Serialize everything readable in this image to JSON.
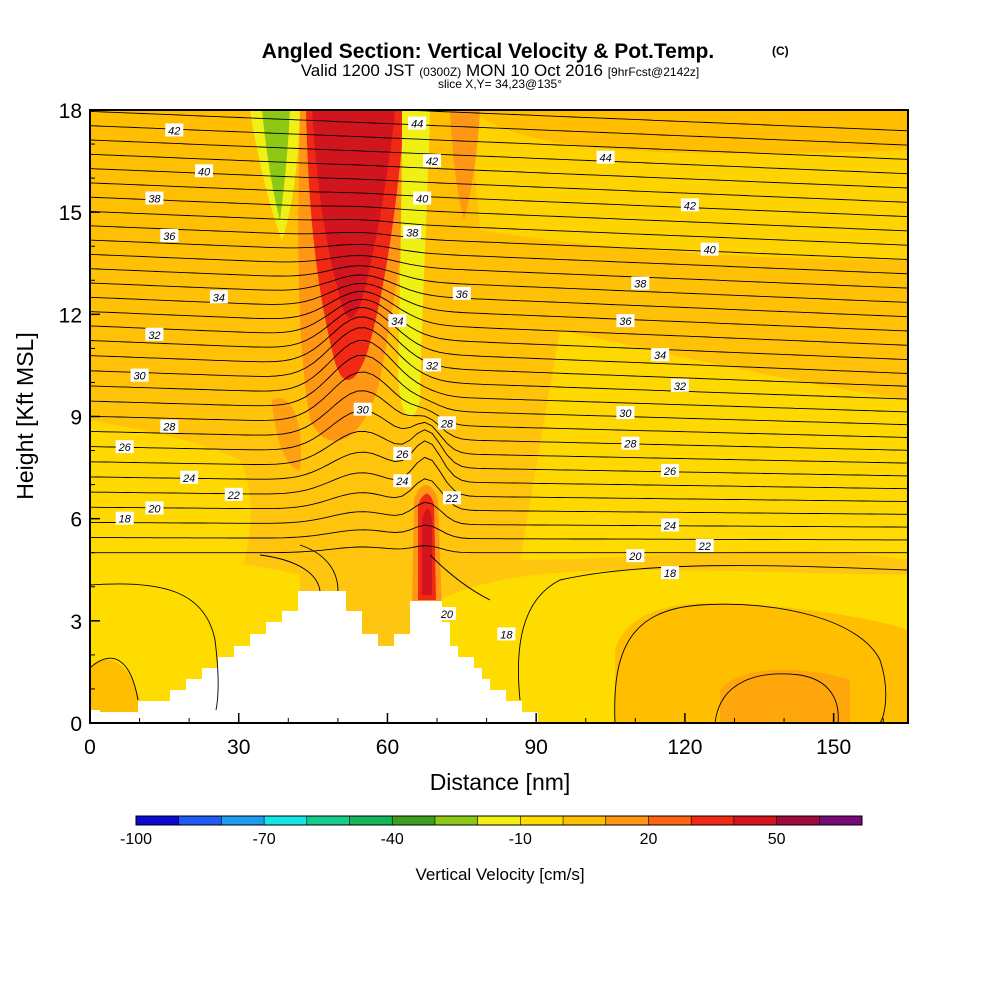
{
  "title_main": "Angled Section: Vertical Velocity & Pot.Temp.",
  "title_unit": "(C)",
  "subtitle_a": "Valid 1200 JST",
  "subtitle_b": "(0300Z)",
  "subtitle_c": "MON 10 Oct 2016",
  "subtitle_d": "[9hrFcst@2142z]",
  "slice_text": "slice X,Y= 34,23@135°",
  "chart_data": {
    "type": "heatmap",
    "xlabel": "Distance [nm]",
    "ylabel": "Height [Kft MSL]",
    "xlim": [
      0,
      165
    ],
    "ylim": [
      0,
      18
    ],
    "xticks": [
      0,
      30,
      60,
      90,
      120,
      150
    ],
    "yticks": [
      0,
      3,
      6,
      9,
      12,
      15,
      18
    ],
    "colorbar": {
      "label": "Vertical Velocity [cm/s]",
      "min": -100,
      "max": 70,
      "step": 10,
      "colors": [
        "#0a0ad2",
        "#1e5af5",
        "#1e9cf0",
        "#14e6e6",
        "#14cc8c",
        "#14b45a",
        "#3ca01e",
        "#8cc814",
        "#f0f014",
        "#ffdc00",
        "#ffbe00",
        "#ff9614",
        "#ff6414",
        "#f02814",
        "#d2141e",
        "#a00a3c",
        "#780a78"
      ],
      "tick_values": [
        -100,
        -70,
        -40,
        -10,
        20,
        50
      ],
      "tick_labels": [
        "-100",
        "-70",
        "-40",
        "-10",
        "20",
        "50"
      ]
    },
    "contour_labels": [
      {
        "x": 17,
        "y": 17.4,
        "text": "42"
      },
      {
        "x": 23,
        "y": 16.2,
        "text": "40"
      },
      {
        "x": 13,
        "y": 15.4,
        "text": "38"
      },
      {
        "x": 16,
        "y": 14.3,
        "text": "36"
      },
      {
        "x": 26,
        "y": 12.5,
        "text": "34"
      },
      {
        "x": 13,
        "y": 11.4,
        "text": "32"
      },
      {
        "x": 10,
        "y": 10.2,
        "text": "30"
      },
      {
        "x": 16,
        "y": 8.7,
        "text": "28"
      },
      {
        "x": 7,
        "y": 8.1,
        "text": "26"
      },
      {
        "x": 20,
        "y": 7.2,
        "text": "24"
      },
      {
        "x": 29,
        "y": 6.7,
        "text": "22"
      },
      {
        "x": 13,
        "y": 6.3,
        "text": "20"
      },
      {
        "x": 7,
        "y": 6.0,
        "text": "18"
      },
      {
        "x": 66,
        "y": 17.6,
        "text": "44"
      },
      {
        "x": 69,
        "y": 16.5,
        "text": "42"
      },
      {
        "x": 67,
        "y": 15.4,
        "text": "40"
      },
      {
        "x": 65,
        "y": 14.4,
        "text": "38"
      },
      {
        "x": 75,
        "y": 12.6,
        "text": "36"
      },
      {
        "x": 62,
        "y": 11.8,
        "text": "34"
      },
      {
        "x": 69,
        "y": 10.5,
        "text": "32"
      },
      {
        "x": 55,
        "y": 9.2,
        "text": "30"
      },
      {
        "x": 72,
        "y": 8.8,
        "text": "28"
      },
      {
        "x": 63,
        "y": 7.9,
        "text": "26"
      },
      {
        "x": 63,
        "y": 7.1,
        "text": "24"
      },
      {
        "x": 73,
        "y": 6.6,
        "text": "22"
      },
      {
        "x": 72,
        "y": 3.2,
        "text": "20"
      },
      {
        "x": 84,
        "y": 2.6,
        "text": "18"
      },
      {
        "x": 104,
        "y": 16.6,
        "text": "44"
      },
      {
        "x": 121,
        "y": 15.2,
        "text": "42"
      },
      {
        "x": 125,
        "y": 13.9,
        "text": "40"
      },
      {
        "x": 111,
        "y": 12.9,
        "text": "38"
      },
      {
        "x": 108,
        "y": 11.8,
        "text": "36"
      },
      {
        "x": 115,
        "y": 10.8,
        "text": "34"
      },
      {
        "x": 119,
        "y": 9.9,
        "text": "32"
      },
      {
        "x": 108,
        "y": 9.1,
        "text": "30"
      },
      {
        "x": 109,
        "y": 8.2,
        "text": "28"
      },
      {
        "x": 117,
        "y": 7.4,
        "text": "26"
      },
      {
        "x": 117,
        "y": 5.8,
        "text": "24"
      },
      {
        "x": 124,
        "y": 5.2,
        "text": "22"
      },
      {
        "x": 110,
        "y": 4.9,
        "text": "20"
      },
      {
        "x": 117,
        "y": 4.4,
        "text": "18"
      }
    ]
  }
}
